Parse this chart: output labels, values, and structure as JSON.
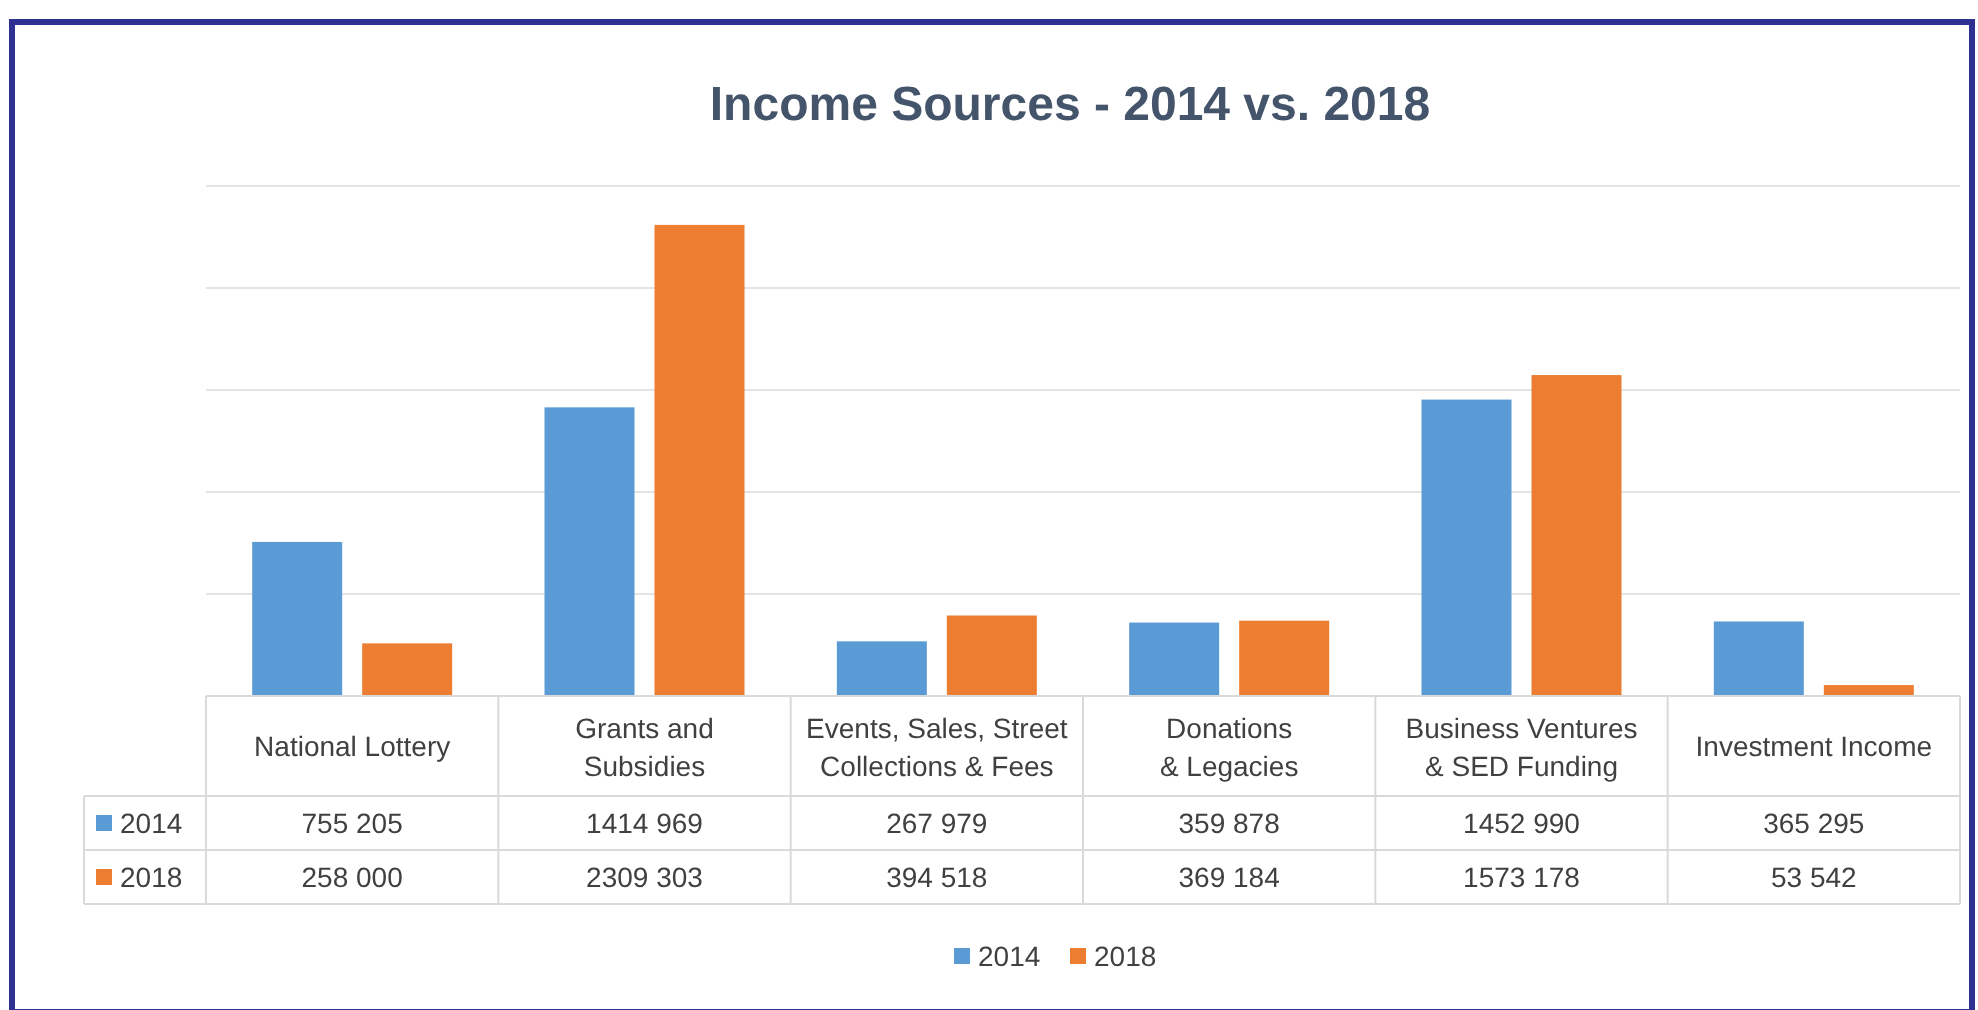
{
  "chart_data": {
    "type": "bar",
    "title": "Income Sources - 2014 vs. 2018",
    "categories": [
      "National Lottery",
      "Grants and Subsidies",
      "Events, Sales, Street Collections & Fees",
      "Donations & Legacies",
      "Business Ventures & SED Funding",
      "Investment Income"
    ],
    "series": [
      {
        "name": "2014",
        "color": "#5b9bd5",
        "values": [
          755205,
          1414969,
          267979,
          359878,
          1452990,
          365295
        ],
        "value_labels": [
          "755 205",
          "1414 969",
          "267 979",
          "359 878",
          "1452 990",
          "365 295"
        ]
      },
      {
        "name": "2018",
        "color": "#ed7d31",
        "values": [
          258000,
          2309303,
          394518,
          369184,
          1573178,
          53542
        ],
        "value_labels": [
          "258 000",
          "2309 303",
          "394 518",
          "369 184",
          "1573 178",
          "53 542"
        ]
      }
    ],
    "ylim": [
      0,
      2500000
    ],
    "yticks": [
      {
        "value": 0,
        "label": null
      },
      {
        "value": 500000,
        "label": null
      },
      {
        "value": 1000000,
        "label": null
      },
      {
        "value": 1500000,
        "label": null
      },
      {
        "value": 2000000,
        "label": null
      },
      {
        "value": 2500000,
        "label": null
      }
    ],
    "tick_labels": "x",
    "grid": "y",
    "legend": "bottom"
  }
}
